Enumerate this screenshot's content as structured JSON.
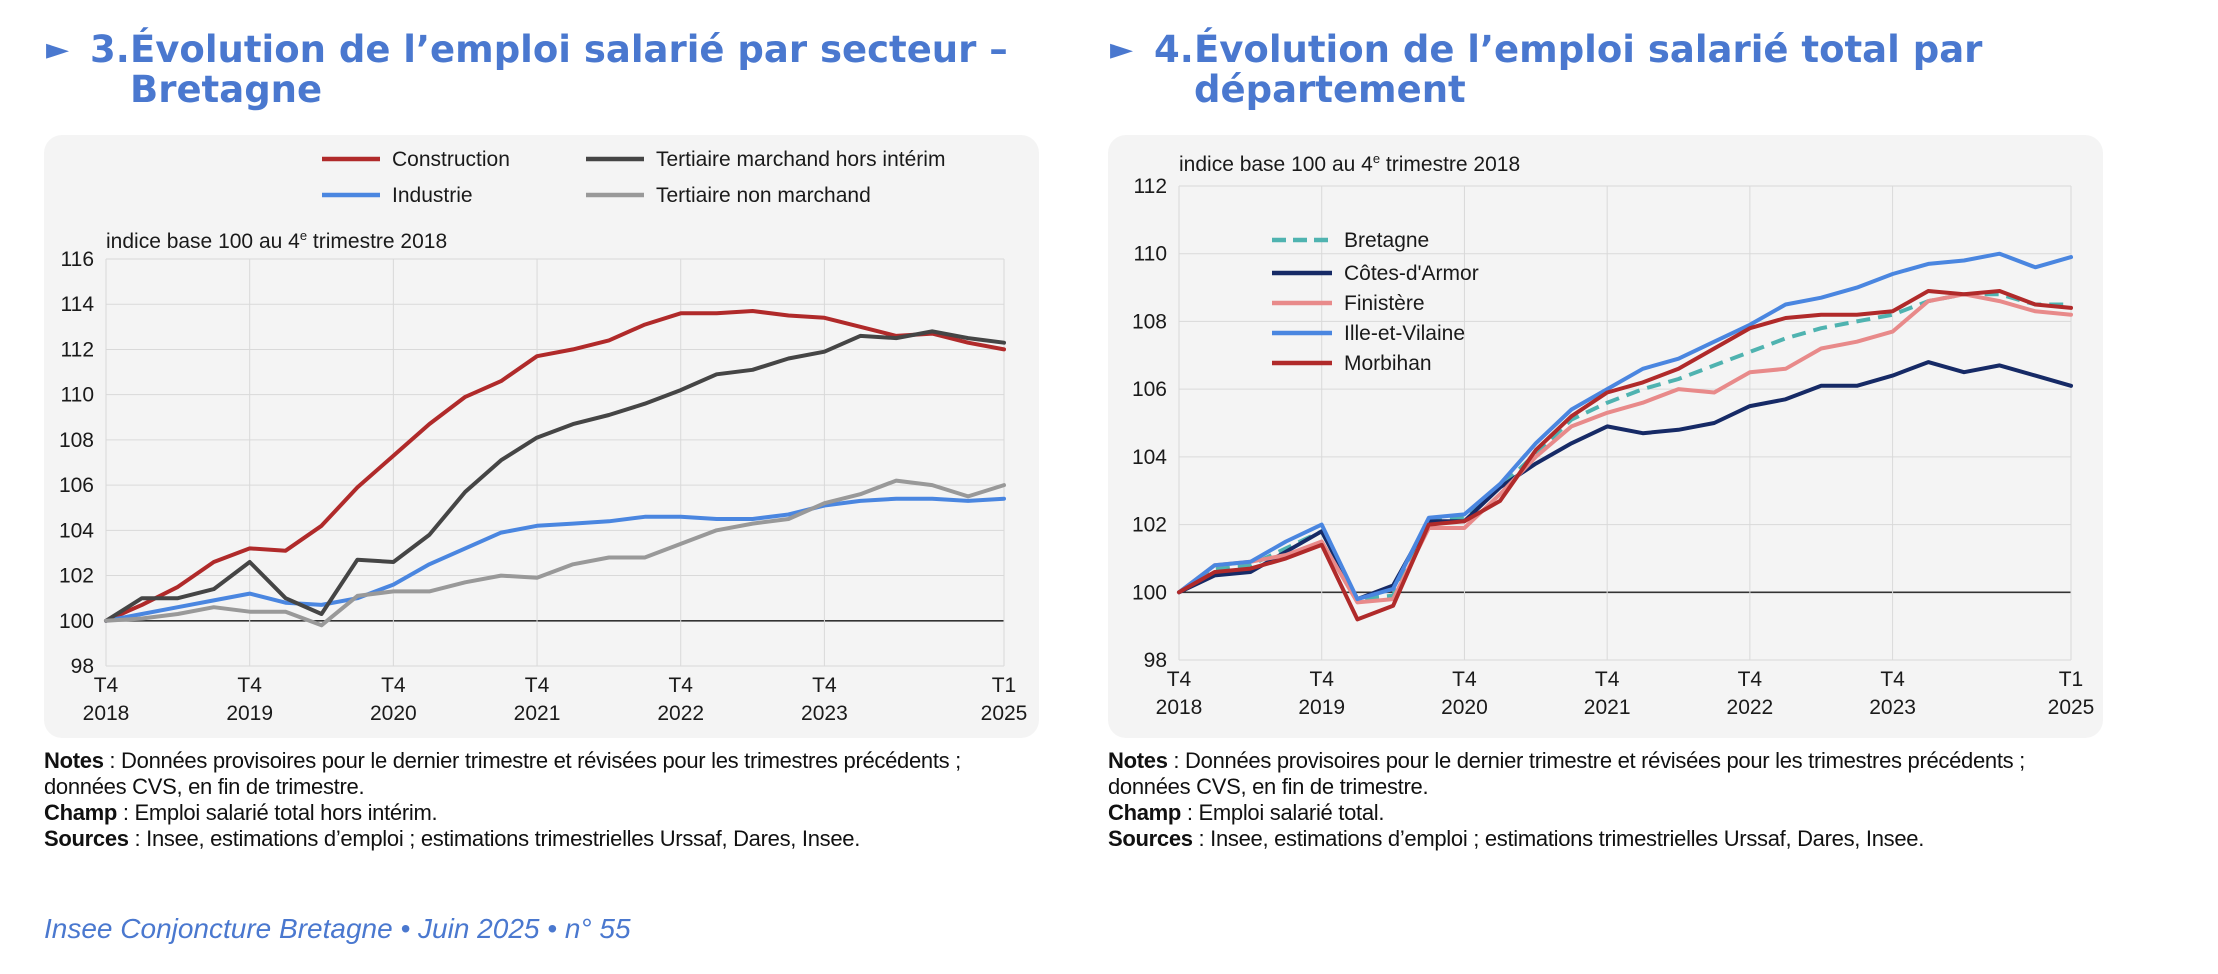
{
  "panels": [
    {
      "number": "3.",
      "title": "Évolution de l’emploi salarié par secteur –\nBretagne",
      "unit_label": "indice base 100 au 4",
      "unit_sup": "e",
      "unit_suffix": " trimestre 2018",
      "notes": {
        "notes_label": "Notes",
        "notes_text": " : Données provisoires pour le dernier trimestre et révisées pour les trimestres précédents ;",
        "notes_text2": "données CVS, en fin de trimestre.",
        "champ_label": "Champ",
        "champ_text": " : Emploi salarié total hors intérim.",
        "sources_label": "Sources",
        "sources_text": " : Insee, estimations d’emploi ; estimations trimestrielles Urssaf, Dares, Insee."
      }
    },
    {
      "number": "4.",
      "title": "Évolution de l’emploi salarié total par\ndépartement",
      "unit_label": "indice base 100 au 4",
      "unit_sup": "e",
      "unit_suffix": " trimestre 2018",
      "notes": {
        "notes_label": "Notes",
        "notes_text": " : Données provisoires pour le dernier trimestre et révisées pour les trimestres précédents ;",
        "notes_text2": "données CVS, en fin de trimestre.",
        "champ_label": "Champ",
        "champ_text": " : Emploi salarié total.",
        "sources_label": "Sources",
        "sources_text": " : Insee, estimations d’emploi ; estimations trimestrielles Urssaf, Dares, Insee."
      }
    }
  ],
  "footer": "Insee Conjoncture Bretagne • Juin 2025 • n° 55",
  "colors": {
    "accent": "#4a78cf",
    "panel_bg": "#f4f4f4",
    "grid": "#d9d9d9",
    "baseline": "#333333"
  },
  "chart_data": [
    {
      "type": "line",
      "ylim": [
        98,
        116
      ],
      "yticks": [
        98,
        100,
        102,
        104,
        106,
        108,
        110,
        112,
        114,
        116
      ],
      "x_count": 26,
      "x_tick_labels": [
        {
          "i": 0,
          "top": "T4",
          "bottom": "2018"
        },
        {
          "i": 4,
          "top": "T4",
          "bottom": "2019"
        },
        {
          "i": 8,
          "top": "T4",
          "bottom": "2020"
        },
        {
          "i": 12,
          "top": "T4",
          "bottom": "2021"
        },
        {
          "i": 16,
          "top": "T4",
          "bottom": "2022"
        },
        {
          "i": 20,
          "top": "T4",
          "bottom": "2023"
        },
        {
          "i": 25,
          "top": "T1",
          "bottom": "2025"
        }
      ],
      "grid": true,
      "legend_position": "top",
      "series": [
        {
          "name": "Construction",
          "color": "#b02a2a",
          "dashed": false,
          "values": [
            100.0,
            100.7,
            101.5,
            102.6,
            103.2,
            103.1,
            104.2,
            105.9,
            107.3,
            108.7,
            109.9,
            110.6,
            111.7,
            112.0,
            112.4,
            113.1,
            113.6,
            113.6,
            113.7,
            113.5,
            113.4,
            113.0,
            112.6,
            112.7,
            112.3,
            112.0
          ]
        },
        {
          "name": "Industrie",
          "color": "#4a86e0",
          "dashed": false,
          "values": [
            100.0,
            100.3,
            100.6,
            100.9,
            101.2,
            100.8,
            100.7,
            101.0,
            101.6,
            102.5,
            103.2,
            103.9,
            104.2,
            104.3,
            104.4,
            104.6,
            104.6,
            104.5,
            104.5,
            104.7,
            105.1,
            105.3,
            105.4,
            105.4,
            105.3,
            105.4
          ]
        },
        {
          "name": "Tertiaire marchand hors intérim",
          "color": "#454545",
          "dashed": false,
          "values": [
            100.0,
            101.0,
            101.0,
            101.4,
            102.6,
            101.0,
            100.3,
            102.7,
            102.6,
            103.8,
            105.7,
            107.1,
            108.1,
            108.7,
            109.1,
            109.6,
            110.2,
            110.9,
            111.1,
            111.6,
            111.9,
            112.6,
            112.5,
            112.8,
            112.5,
            112.3
          ]
        },
        {
          "name": "Tertiaire non marchand",
          "color": "#999999",
          "dashed": false,
          "values": [
            100.0,
            100.1,
            100.3,
            100.6,
            100.4,
            100.4,
            99.8,
            101.1,
            101.3,
            101.3,
            101.7,
            102.0,
            101.9,
            102.5,
            102.8,
            102.8,
            103.4,
            104.0,
            104.3,
            104.5,
            105.2,
            105.6,
            106.2,
            106.0,
            105.5,
            106.0
          ]
        }
      ]
    },
    {
      "type": "line",
      "ylim": [
        98,
        112
      ],
      "yticks": [
        98,
        100,
        102,
        104,
        106,
        108,
        110,
        112
      ],
      "x_count": 26,
      "x_tick_labels": [
        {
          "i": 0,
          "top": "T4",
          "bottom": "2018"
        },
        {
          "i": 4,
          "top": "T4",
          "bottom": "2019"
        },
        {
          "i": 8,
          "top": "T4",
          "bottom": "2020"
        },
        {
          "i": 12,
          "top": "T4",
          "bottom": "2021"
        },
        {
          "i": 16,
          "top": "T4",
          "bottom": "2022"
        },
        {
          "i": 20,
          "top": "T4",
          "bottom": "2023"
        },
        {
          "i": 25,
          "top": "T1",
          "bottom": "2025"
        }
      ],
      "grid": true,
      "legend_position": "top-left",
      "series": [
        {
          "name": "Bretagne",
          "color": "#4fb3b0",
          "dashed": true,
          "values": [
            100.0,
            100.7,
            100.8,
            101.3,
            101.8,
            99.8,
            99.9,
            102.1,
            102.2,
            103.1,
            104.1,
            105.1,
            105.6,
            106.0,
            106.3,
            106.7,
            107.1,
            107.5,
            107.8,
            108.0,
            108.2,
            108.6,
            108.8,
            108.8,
            108.5,
            108.5
          ]
        },
        {
          "name": "Côtes-d'Armor",
          "color": "#162a66",
          "dashed": false,
          "values": [
            100.0,
            100.5,
            100.6,
            101.2,
            101.8,
            99.8,
            100.2,
            102.1,
            102.1,
            103.1,
            103.8,
            104.4,
            104.9,
            104.7,
            104.8,
            105.0,
            105.5,
            105.7,
            106.1,
            106.1,
            106.4,
            106.8,
            106.5,
            106.7,
            106.4,
            106.1
          ]
        },
        {
          "name": "Finistère",
          "color": "#e88a8a",
          "dashed": false,
          "values": [
            100.0,
            100.8,
            100.9,
            101.1,
            101.5,
            99.7,
            99.8,
            101.9,
            101.9,
            102.9,
            104.0,
            104.9,
            105.3,
            105.6,
            106.0,
            105.9,
            106.5,
            106.6,
            107.2,
            107.4,
            107.7,
            108.6,
            108.8,
            108.6,
            108.3,
            108.2
          ]
        },
        {
          "name": "Ille-et-Vilaine",
          "color": "#4a86e0",
          "dashed": false,
          "values": [
            100.0,
            100.8,
            100.9,
            101.5,
            102.0,
            99.8,
            100.1,
            102.2,
            102.3,
            103.2,
            104.4,
            105.4,
            106.0,
            106.6,
            106.9,
            107.4,
            107.9,
            108.5,
            108.7,
            109.0,
            109.4,
            109.7,
            109.8,
            110.0,
            109.6,
            109.9
          ]
        },
        {
          "name": "Morbihan",
          "color": "#b02a2a",
          "dashed": false,
          "values": [
            100.0,
            100.6,
            100.7,
            101.0,
            101.4,
            99.2,
            99.6,
            102.0,
            102.1,
            102.7,
            104.2,
            105.2,
            105.9,
            106.2,
            106.6,
            107.2,
            107.8,
            108.1,
            108.2,
            108.2,
            108.3,
            108.9,
            108.8,
            108.9,
            108.5,
            108.4
          ]
        }
      ]
    }
  ]
}
